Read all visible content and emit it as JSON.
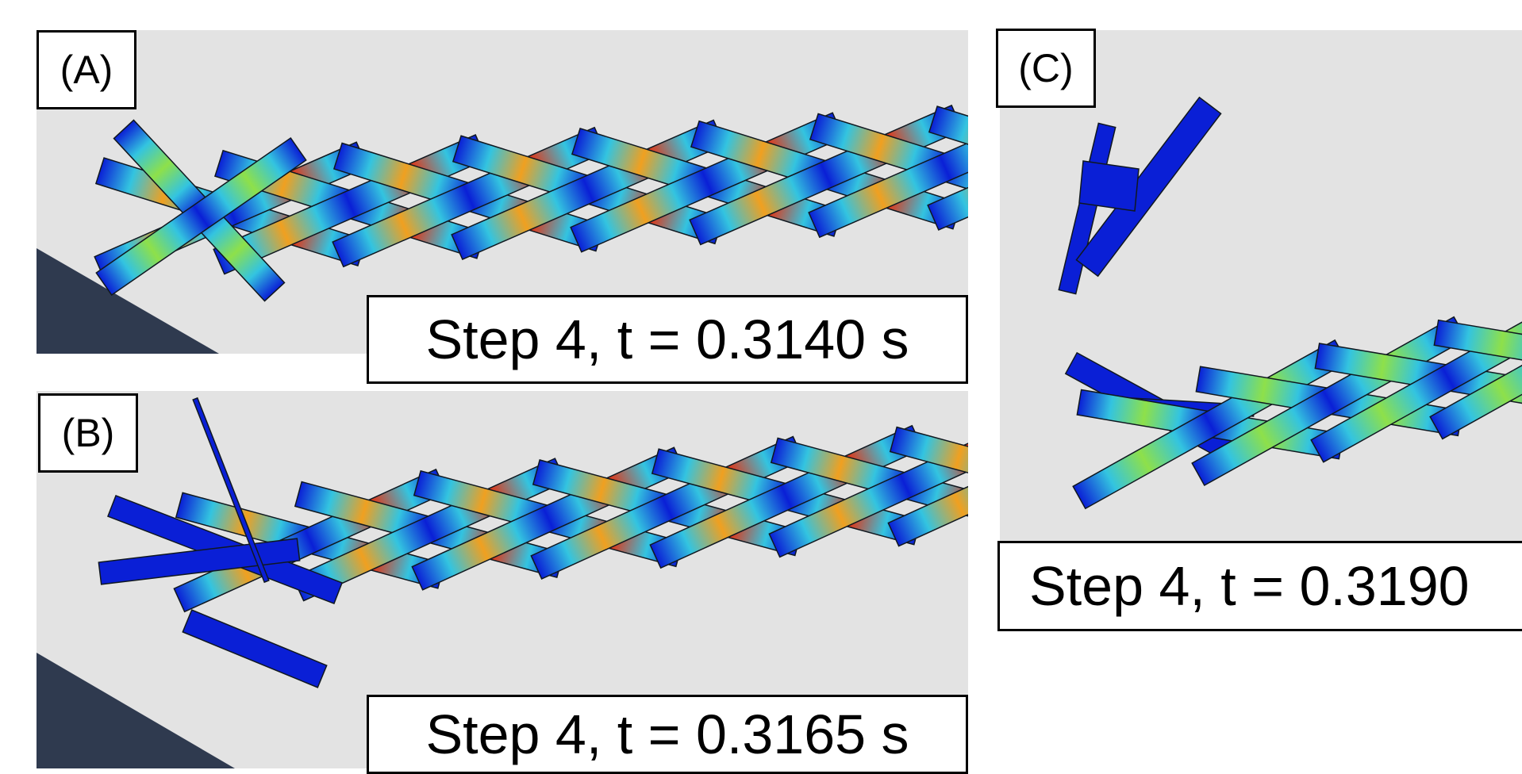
{
  "panels": [
    {
      "label": "(A)",
      "caption": "Step 4, t = 0.3140 s"
    },
    {
      "label": "(B)",
      "caption": "Step 4, t = 0.3165 s"
    },
    {
      "label": "(C)",
      "caption": "Step 4, t = 0.3190"
    }
  ],
  "colors": {
    "background": "#e3e3e3",
    "ground": "#2f3a4f",
    "strip_low": "#0a1fd6",
    "strip_mid": "#33c4e0",
    "strip_midhigh": "#8ee04a",
    "strip_high": "#f0a020",
    "strip_max": "#e43414",
    "strip_edge": "#101820"
  }
}
